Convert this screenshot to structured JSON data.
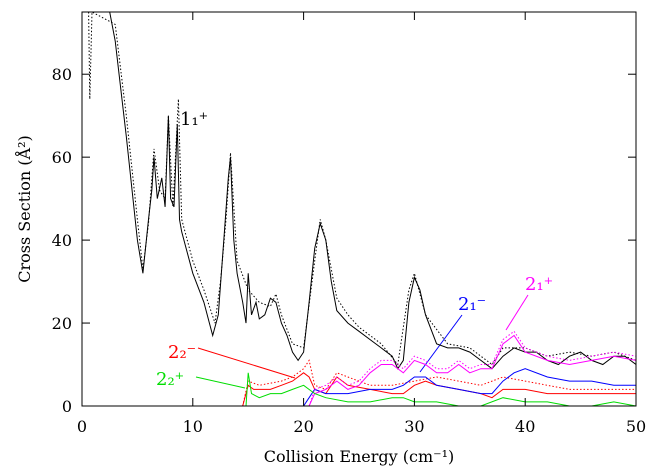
{
  "chart_data": {
    "type": "line",
    "x_label": "Collision Energy (cm⁻¹)",
    "y_label": "Cross Section (Å²)",
    "xlim": [
      0,
      50
    ],
    "ylim": [
      0,
      95
    ],
    "xticks": [
      0,
      10,
      20,
      30,
      40,
      50
    ],
    "yticks": [
      0,
      20,
      40,
      60,
      80
    ],
    "annotations": [
      "1₁⁺",
      "2₁⁻",
      "2₁⁺",
      "2₂⁻",
      "2₂⁺"
    ],
    "series": [
      {
        "color": "#000000",
        "dash": "solid",
        "x": [
          2.5,
          3,
          4,
          5,
          5.5,
          6,
          6.3,
          6.5,
          6.8,
          7.2,
          7.5,
          7.8,
          8,
          8.3,
          8.6,
          8.8,
          9,
          10,
          11,
          11.5,
          11.8,
          12.3,
          12.8,
          13.2,
          13.4,
          13.7,
          14,
          14.5,
          14.8,
          15,
          15.3,
          15.7,
          16,
          16.5,
          17,
          17.5,
          18,
          18.5,
          19,
          19.5,
          20,
          20.5,
          21,
          21.5,
          22,
          22.5,
          23,
          24,
          25,
          26,
          27,
          28,
          28.5,
          29,
          29.5,
          30,
          30.5,
          31,
          32,
          33,
          34,
          35,
          36,
          37,
          38,
          39,
          40,
          41,
          42,
          43,
          44,
          45,
          46,
          47,
          48,
          49,
          50
        ],
        "values": [
          95,
          88,
          65,
          40,
          32,
          45,
          52,
          60,
          50,
          55,
          48,
          70,
          50,
          48,
          68,
          45,
          42,
          32,
          25,
          20,
          17,
          22,
          40,
          55,
          60,
          40,
          32,
          25,
          20,
          32,
          22,
          25,
          21,
          22,
          26,
          25,
          20,
          17,
          13,
          11,
          13,
          25,
          38,
          44,
          40,
          30,
          23,
          20,
          18,
          16,
          14,
          12,
          9,
          11,
          25,
          31,
          28,
          22,
          15,
          14,
          14,
          13,
          11,
          9,
          12,
          14,
          13,
          13,
          11,
          10,
          12,
          13,
          11,
          10,
          12,
          12,
          10
        ]
      },
      {
        "color": "#000000",
        "dash": "dotted",
        "x": [
          0.6,
          0.7,
          0.9,
          3,
          4,
          5,
          5.5,
          6,
          6.5,
          7,
          7.5,
          7.8,
          8.2,
          8.7,
          9,
          10,
          11,
          12,
          12.5,
          13,
          13.4,
          14,
          15,
          16,
          17,
          17.5,
          18,
          19,
          20,
          21,
          21.5,
          22,
          23,
          24,
          25,
          27,
          28.5,
          29.5,
          30,
          31,
          33,
          35,
          37,
          38,
          40,
          42,
          44,
          46,
          48,
          50
        ],
        "values": [
          95,
          74,
          95,
          92,
          70,
          45,
          33,
          44,
          62,
          52,
          50,
          70,
          48,
          74,
          45,
          35,
          28,
          20,
          30,
          45,
          61,
          35,
          28,
          25,
          24,
          27,
          22,
          15,
          14,
          35,
          45,
          40,
          26,
          22,
          19,
          15,
          10,
          28,
          32,
          22,
          15,
          14,
          10,
          14,
          14,
          12,
          13,
          12,
          13,
          11
        ]
      },
      {
        "color": "#ff0000",
        "dash": "solid",
        "x": [
          0,
          14.5,
          15,
          15.5,
          16,
          17,
          18,
          19,
          20,
          20.5,
          21,
          22,
          23,
          23.5,
          24,
          26,
          28,
          29,
          30,
          31,
          32,
          34,
          36,
          37,
          38,
          40,
          42,
          44,
          46,
          48,
          50
        ],
        "values": [
          0,
          0,
          5,
          4,
          4,
          4,
          5,
          6,
          8,
          7,
          4,
          3,
          7,
          6,
          5,
          4,
          3,
          3,
          5,
          6,
          5,
          4,
          3,
          2,
          4,
          4,
          3,
          3,
          3,
          3,
          3
        ]
      },
      {
        "color": "#ff0000",
        "dash": "dotted",
        "x": [
          14.5,
          15,
          16,
          18,
          19,
          20,
          20.5,
          21,
          22,
          23,
          24,
          26,
          28,
          30,
          32,
          34,
          36,
          38,
          40,
          42,
          44,
          46,
          48,
          50
        ],
        "values": [
          0,
          6,
          5,
          6,
          7,
          9,
          11,
          5,
          4,
          8,
          7,
          5,
          5,
          6,
          7,
          6,
          5,
          7,
          6,
          5,
          4,
          4,
          4,
          4
        ]
      },
      {
        "color": "#0000ff",
        "dash": "solid",
        "x": [
          0,
          20,
          20.5,
          21,
          22,
          24,
          26,
          28,
          29,
          30,
          31,
          32,
          34,
          36,
          37,
          38,
          39,
          40,
          42,
          44,
          46,
          48,
          50
        ],
        "values": [
          0,
          0,
          2,
          4,
          3,
          3,
          4,
          4,
          5,
          7,
          7,
          5,
          4,
          3,
          3,
          6,
          8,
          9,
          7,
          6,
          6,
          5,
          5
        ]
      },
      {
        "color": "#ff00ff",
        "dash": "solid",
        "x": [
          20.5,
          21,
          22,
          23,
          24,
          25,
          26,
          27,
          28,
          29,
          30,
          31,
          32,
          33,
          34,
          35,
          36,
          37,
          38,
          39,
          40,
          42,
          44,
          46,
          48,
          50
        ],
        "values": [
          0,
          3,
          4,
          6,
          4,
          5,
          8,
          10,
          10,
          8,
          11,
          10,
          8,
          8,
          10,
          8,
          9,
          9,
          15,
          17,
          13,
          11,
          10,
          11,
          12,
          11
        ]
      },
      {
        "color": "#ff00ff",
        "dash": "dotted",
        "x": [
          20.5,
          21,
          22,
          23,
          24,
          25,
          26,
          27,
          28,
          29,
          30,
          31,
          32,
          33,
          34,
          35,
          36,
          37,
          38,
          39,
          40,
          42,
          44,
          46,
          48,
          50
        ],
        "values": [
          0,
          4,
          5,
          7,
          5,
          6,
          9,
          11,
          11,
          9,
          12,
          11,
          9,
          9,
          11,
          9,
          10,
          10,
          16,
          18,
          14,
          12,
          11,
          12,
          13,
          12
        ]
      },
      {
        "color": "#00dd00",
        "dash": "solid",
        "x": [
          0,
          14.8,
          15,
          15.3,
          16,
          17,
          18,
          19,
          20,
          21,
          22,
          24,
          26,
          28,
          29,
          30,
          32,
          34,
          36,
          38,
          40,
          42,
          44,
          46,
          48,
          50
        ],
        "values": [
          0,
          0,
          8,
          3,
          2,
          3,
          3,
          4,
          5,
          3,
          2,
          1,
          1,
          2,
          2,
          1,
          1,
          0,
          0,
          2,
          1,
          1,
          0,
          0,
          1,
          0
        ]
      }
    ]
  }
}
